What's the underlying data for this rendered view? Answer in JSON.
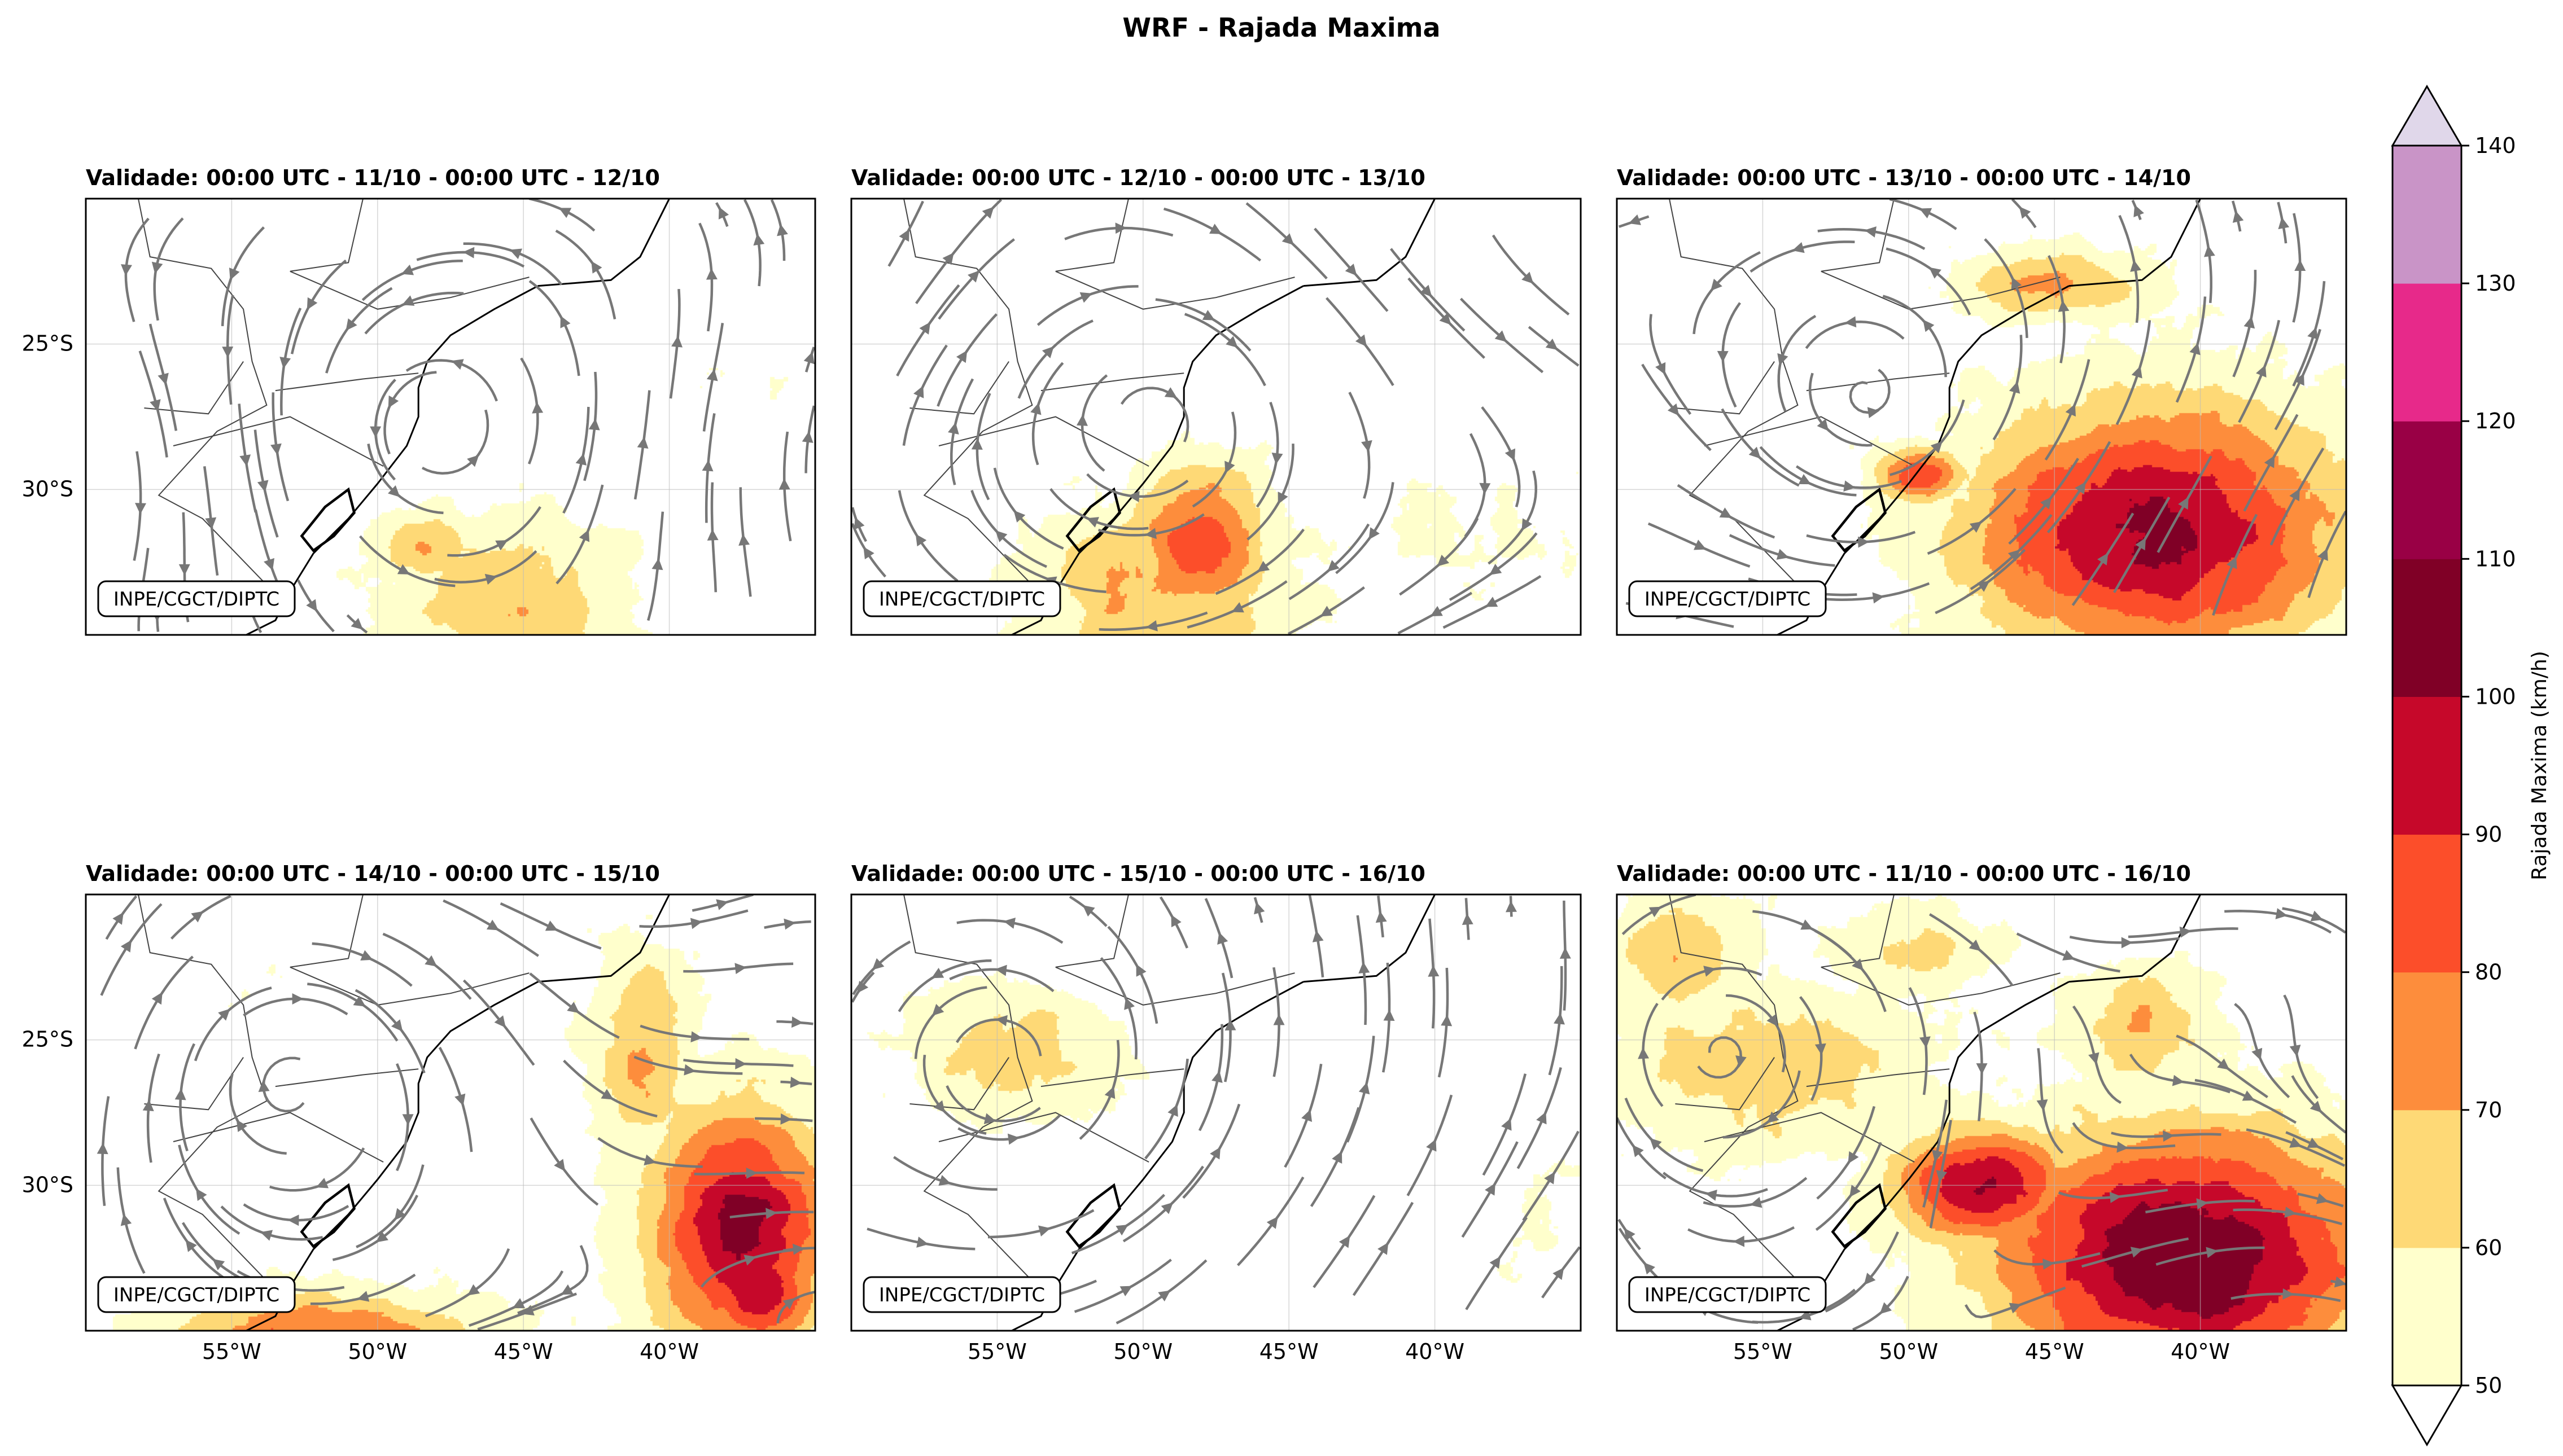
{
  "figure_title": "WRF - Rajada Maxima",
  "chart_data": {
    "type": "filled-contour map with streamlines",
    "title": "WRF - Rajada Maxima",
    "variable": "Rajada Maxima (km/h)",
    "levels": [
      50,
      60,
      70,
      80,
      90,
      100,
      110,
      120,
      130,
      140
    ],
    "level_colors": [
      "#ffffcc",
      "#fed976",
      "#fd8d3c",
      "#fc4e2a",
      "#c6082a",
      "#800026",
      "#990045",
      "#e7298a",
      "#c994c7",
      "#e0d7ea"
    ],
    "colorbar": {
      "label": "Rajada Maxima (km/h)",
      "ticks": [
        "50",
        "60",
        "70",
        "80",
        "90",
        "100",
        "110",
        "120",
        "130",
        "140"
      ],
      "extend": "both"
    },
    "axes": {
      "lon_range": [
        -60,
        -35
      ],
      "lat_range": [
        -35,
        -20
      ],
      "xticks": [
        "55°W",
        "50°W",
        "45°W",
        "40°W"
      ],
      "yticks": [
        "25°S",
        "30°S"
      ],
      "grid": true
    },
    "panels": [
      {
        "title": "Validade: 00:00 UTC - 11/10 - 00:00 UTC - 12/10",
        "max_gust": 80,
        "zones": [
          [
            -45.5,
            -34.0,
            4.2,
            3.0,
            0.45,
            26
          ],
          [
            -48.5,
            -32.0,
            1.8,
            1.4,
            0.55,
            28
          ],
          [
            -56.5,
            -25.5,
            2.5,
            2.0,
            0.4,
            0
          ],
          [
            -37.5,
            -25.8,
            3.2,
            1.3,
            0.0,
            4
          ],
          [
            -53.5,
            -23.5,
            3.0,
            1.5,
            0.0,
            0
          ]
        ]
      },
      {
        "title": "Validade: 00:00 UTC - 12/10 - 00:00 UTC - 13/10",
        "max_gust": 90,
        "zones": [
          [
            -48.0,
            -31.8,
            2.2,
            2.6,
            0.55,
            38
          ],
          [
            -49.5,
            -33.5,
            4.5,
            3.0,
            0.5,
            24
          ],
          [
            -58.5,
            -21.5,
            2.0,
            1.6,
            0.0,
            0
          ],
          [
            -38.5,
            -31.5,
            5.0,
            2.4,
            0.4,
            6
          ],
          [
            -53.0,
            -27.5,
            3.5,
            2.0,
            0.0,
            0
          ]
        ]
      },
      {
        "title": "Validade: 00:00 UTC - 13/10 - 00:00 UTC - 14/10",
        "max_gust": 110,
        "zones": [
          [
            -41.5,
            -31.5,
            6.5,
            4.5,
            0.55,
            35
          ],
          [
            -40.5,
            -32.0,
            4.8,
            3.2,
            0.6,
            25
          ],
          [
            -45.0,
            -23.0,
            3.0,
            1.2,
            0.3,
            18
          ],
          [
            -55.5,
            -21.5,
            2.0,
            1.5,
            0.0,
            0
          ],
          [
            -49.5,
            -29.5,
            1.5,
            1.0,
            0.0,
            27
          ]
        ]
      },
      {
        "title": "Validade: 00:00 UTC - 14/10 - 00:00 UTC - 15/10",
        "max_gust": 110,
        "zones": [
          [
            -37.5,
            -31.5,
            3.2,
            4.2,
            0.55,
            36
          ],
          [
            -37.0,
            -33.5,
            2.1,
            2.2,
            0.4,
            34
          ],
          [
            -52.0,
            -35.0,
            5.5,
            1.4,
            0.0,
            22
          ],
          [
            -41.0,
            -25.5,
            1.8,
            3.5,
            0.5,
            16
          ],
          [
            -55.0,
            -23.5,
            4.0,
            1.8,
            0.0,
            2
          ]
        ]
      },
      {
        "title": "Validade: 00:00 UTC - 15/10 - 00:00 UTC - 16/10",
        "max_gust": 80,
        "zones": [
          [
            -54.5,
            -25.5,
            3.5,
            2.2,
            0.25,
            24
          ],
          [
            -56.5,
            -30.5,
            3.2,
            2.0,
            0.4,
            0
          ],
          [
            -36.5,
            -31.0,
            2.0,
            3.0,
            0.3,
            6
          ],
          [
            -47.0,
            -21.5,
            4.5,
            1.2,
            0.0,
            0
          ]
        ]
      },
      {
        "title": "Validade: 00:00 UTC - 11/10 - 00:00 UTC - 16/10",
        "max_gust": 110,
        "zones": [
          [
            -40.5,
            -32.5,
            6.5,
            4.5,
            0.5,
            40
          ],
          [
            -40.0,
            -33.0,
            3.5,
            2.4,
            0.55,
            30
          ],
          [
            -55.0,
            -26.0,
            6.0,
            3.0,
            0.2,
            13
          ],
          [
            -47.5,
            -30.0,
            3.0,
            2.0,
            0.4,
            35
          ],
          [
            -42.0,
            -24.5,
            2.5,
            2.0,
            0.5,
            16
          ],
          [
            -58.0,
            -22.0,
            2.5,
            2.0,
            0.0,
            15
          ],
          [
            -50.0,
            -22.0,
            3.0,
            1.5,
            0.0,
            12
          ]
        ]
      }
    ],
    "coastline": [
      [
        -44.5,
        -23.0
      ],
      [
        -46.0,
        -23.8
      ],
      [
        -47.5,
        -24.7
      ],
      [
        -48.3,
        -25.6
      ],
      [
        -48.6,
        -26.5
      ],
      [
        -48.6,
        -27.5
      ],
      [
        -49.0,
        -28.5
      ],
      [
        -50.0,
        -29.8
      ],
      [
        -51.0,
        -31.0
      ],
      [
        -52.2,
        -32.2
      ],
      [
        -53.0,
        -33.5
      ],
      [
        -53.5,
        -34.5
      ],
      [
        -54.5,
        -35.0
      ]
    ],
    "coastline_ne": [
      [
        -44.5,
        -23.0
      ],
      [
        -43.2,
        -22.9
      ],
      [
        -42.0,
        -22.8
      ],
      [
        -41.0,
        -22.0
      ],
      [
        -40.5,
        -21.0
      ],
      [
        -40.0,
        -20.0
      ]
    ],
    "lagoon": [
      [
        -51.0,
        -30.0
      ],
      [
        -50.8,
        -30.8
      ],
      [
        -51.5,
        -31.6
      ],
      [
        -52.2,
        -32.1
      ],
      [
        -52.6,
        -31.6
      ],
      [
        -51.8,
        -30.6
      ]
    ],
    "borders": [
      [
        [
          -58.2,
          -20.0
        ],
        [
          -57.8,
          -22.0
        ],
        [
          -55.7,
          -22.4
        ],
        [
          -54.6,
          -23.8
        ],
        [
          -54.3,
          -25.6
        ],
        [
          -53.8,
          -27.1
        ],
        [
          -55.5,
          -28.0
        ],
        [
          -57.5,
          -30.2
        ],
        [
          -56.0,
          -31.0
        ],
        [
          -53.4,
          -33.7
        ]
      ],
      [
        [
          -58.0,
          -27.2
        ],
        [
          -55.8,
          -27.4
        ],
        [
          -54.6,
          -25.6
        ]
      ],
      [
        [
          -53.0,
          -22.5
        ],
        [
          -50.0,
          -23.8
        ],
        [
          -47.5,
          -23.4
        ],
        [
          -44.8,
          -22.7
        ]
      ],
      [
        [
          -53.5,
          -26.6
        ],
        [
          -50.5,
          -26.2
        ],
        [
          -48.6,
          -26.0
        ]
      ],
      [
        [
          -57.0,
          -28.5
        ],
        [
          -53.0,
          -27.5
        ],
        [
          -49.8,
          -29.2
        ]
      ],
      [
        [
          -50.5,
          -20.0
        ],
        [
          -51.0,
          -22.2
        ],
        [
          -53.0,
          -22.5
        ]
      ]
    ]
  },
  "stamp": "INPE/CGCT/DIPTC"
}
